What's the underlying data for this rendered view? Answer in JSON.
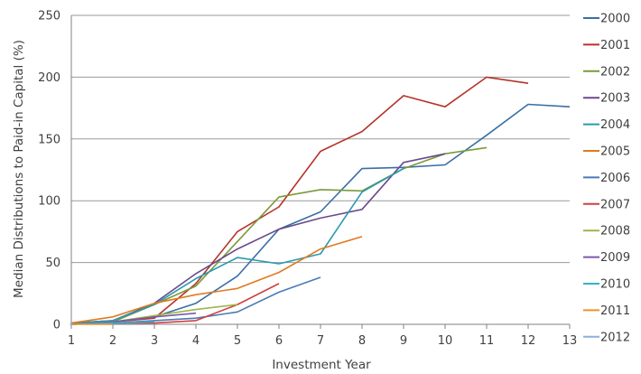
{
  "chart_data": {
    "type": "line",
    "title": "",
    "xlabel": "Investment Year",
    "ylabel": "Median Distributions to Paid-in Capital (%)",
    "xlim": [
      1,
      13
    ],
    "ylim": [
      0,
      250
    ],
    "x_ticks": [
      1,
      2,
      3,
      4,
      5,
      6,
      7,
      8,
      9,
      10,
      11,
      12,
      13
    ],
    "y_ticks": [
      0,
      50,
      100,
      150,
      200,
      250
    ],
    "grid": "horizontal",
    "legend_position": "right",
    "series": [
      {
        "name": "2000",
        "color": "#3a6ea5",
        "x": [
          1,
          2,
          3,
          4,
          5,
          6,
          7,
          8,
          9,
          10,
          11,
          12,
          13
        ],
        "y": [
          0,
          2,
          6,
          17,
          39,
          77,
          91,
          126,
          127,
          129,
          153,
          178,
          176
        ]
      },
      {
        "name": "2001",
        "color": "#b5342a",
        "x": [
          1,
          2,
          3,
          4,
          5,
          6,
          7,
          8,
          9,
          10,
          11,
          12
        ],
        "y": [
          0,
          2,
          5,
          33,
          75,
          95,
          140,
          156,
          185,
          176,
          200,
          195
        ]
      },
      {
        "name": "2002",
        "color": "#7a9a3a",
        "x": [
          1,
          2,
          3,
          4,
          5,
          6,
          7,
          8,
          9,
          10,
          11
        ],
        "y": [
          1,
          2,
          16,
          31,
          67,
          103,
          109,
          108,
          126,
          138,
          143
        ]
      },
      {
        "name": "2003",
        "color": "#6a4a8c",
        "x": [
          1,
          2,
          3,
          4,
          5,
          6,
          7,
          8,
          9,
          10
        ],
        "y": [
          1,
          3,
          17,
          41,
          61,
          77,
          86,
          93,
          131,
          138
        ]
      },
      {
        "name": "2004",
        "color": "#2a9ab0",
        "x": [
          1,
          2,
          3,
          4,
          5,
          6,
          7,
          8,
          9
        ],
        "y": [
          1,
          3,
          16,
          37,
          54,
          49,
          57,
          107,
          126
        ]
      },
      {
        "name": "2005",
        "color": "#e07a20",
        "x": [
          1,
          2,
          3,
          4,
          5,
          6,
          7,
          8
        ],
        "y": [
          1,
          6,
          17,
          24,
          29,
          42,
          61,
          71
        ]
      },
      {
        "name": "2006",
        "color": "#4a7ab5",
        "x": [
          1,
          2,
          3,
          4,
          5,
          6,
          7
        ],
        "y": [
          0,
          1,
          3,
          5,
          10,
          26,
          38
        ]
      },
      {
        "name": "2007",
        "color": "#d04040",
        "x": [
          1,
          2,
          3,
          4,
          5,
          6
        ],
        "y": [
          0,
          1,
          1,
          3,
          16,
          33
        ]
      },
      {
        "name": "2008",
        "color": "#9ab84a",
        "x": [
          1,
          2,
          3,
          4,
          5
        ],
        "y": [
          0,
          2,
          7,
          12,
          16
        ]
      },
      {
        "name": "2009",
        "color": "#7a5aa8",
        "x": [
          1,
          2,
          3,
          4
        ],
        "y": [
          0,
          2,
          6,
          9
        ]
      },
      {
        "name": "2010",
        "color": "#3ab0c8",
        "x": [
          1,
          2,
          3
        ],
        "y": [
          0,
          1,
          2
        ]
      },
      {
        "name": "2011",
        "color": "#f0902a",
        "x": [
          1,
          2
        ],
        "y": [
          0,
          0
        ]
      },
      {
        "name": "2012",
        "color": "#8ab0dd",
        "x": [
          1
        ],
        "y": [
          0
        ]
      }
    ]
  }
}
